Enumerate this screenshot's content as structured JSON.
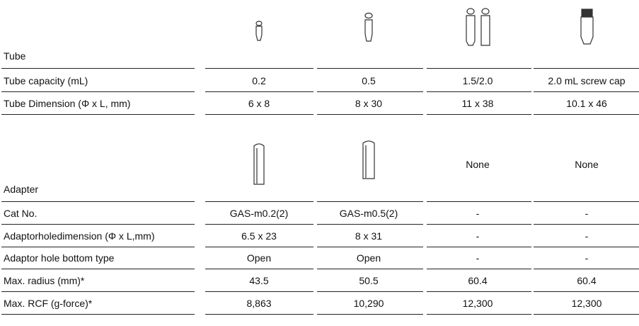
{
  "tube": {
    "label": "Tube",
    "rows": [
      [
        "Tube capacity (mL)",
        "0.2",
        "0.5",
        "1.5/2.0",
        "2.0 mL screw cap"
      ],
      [
        "Tube Dimension (Φ x L, mm)",
        "6 x 8",
        "8 x 30",
        "11 x 38",
        "10.1 x 46"
      ]
    ]
  },
  "adapter": {
    "label": "Adapter",
    "placeholders": [
      "None",
      "None"
    ],
    "rows": [
      [
        "Cat No.",
        "GAS-m0.2(2)",
        "GAS-m0.5(2)",
        "-",
        "-"
      ],
      [
        "Adaptorholedimension (Φ x L,mm)",
        "6.5 x 23",
        "8 x 31",
        "-",
        "-"
      ],
      [
        "Adaptor hole bottom type",
        "Open",
        "Open",
        "-",
        "-"
      ],
      [
        "Max. radius (mm)*",
        "43.5",
        "50.5",
        "60.4",
        "60.4"
      ],
      [
        "Max. RCF (g-force)*",
        "8,863",
        "10,290",
        "12,300",
        "12,300"
      ]
    ]
  }
}
